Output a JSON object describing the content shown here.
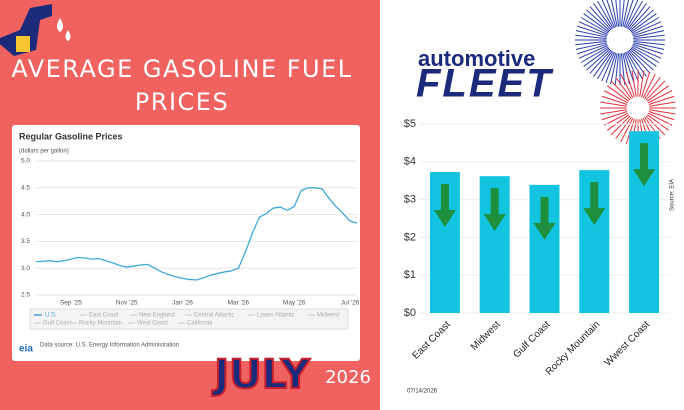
{
  "headline": {
    "line1": "AVERAGE GASOLINE FUEL",
    "line2": "PRICES"
  },
  "branding": {
    "small": "automotive",
    "big": "FLEET"
  },
  "decoration_text": {
    "month": "JULY",
    "year": "2026"
  },
  "date": "07/14/2026",
  "eia_logo": "eia",
  "chart_data": [
    {
      "type": "line",
      "title": "Regular Gasoline Prices",
      "subtitle": "(dollars per gallon)",
      "categories": [
        null,
        null,
        null,
        null,
        null,
        "Sep '25",
        null,
        null,
        null,
        null,
        null,
        null,
        null,
        "Nov '25",
        null,
        null,
        null,
        null,
        null,
        null,
        null,
        "Jan '26",
        null,
        null,
        null,
        null,
        null,
        null,
        null,
        "Mar '26",
        null,
        null,
        null,
        null,
        null,
        null,
        null,
        "May '26",
        null,
        null,
        null,
        null,
        null,
        null,
        null,
        "Jul '26",
        null
      ],
      "series": [
        {
          "name": "U.S.",
          "color": "#3fa9d8",
          "values": [
            3.12,
            3.13,
            3.14,
            3.12,
            3.14,
            3.17,
            3.2,
            3.19,
            3.17,
            3.18,
            3.14,
            3.1,
            3.05,
            3.02,
            3.04,
            3.06,
            3.07,
            3.0,
            2.93,
            2.88,
            2.84,
            2.81,
            2.79,
            2.78,
            2.82,
            2.87,
            2.9,
            2.93,
            2.95,
            3.0,
            3.3,
            3.65,
            3.95,
            4.02,
            4.12,
            4.14,
            4.08,
            4.15,
            4.45,
            4.5,
            4.5,
            4.48,
            4.3,
            4.15,
            4.02,
            3.88,
            3.84
          ]
        }
      ],
      "legend_other": [
        "East Coast",
        "New England",
        "Central Atlantic",
        "Lower Atlantic",
        "Midwest",
        "Gulf Coast",
        "Rocky Mountain",
        "West Coast",
        "California"
      ],
      "ylim": [
        2.5,
        5.0
      ],
      "yticks": [
        {
          "value": 2.5,
          "label": "2.5"
        },
        {
          "value": 3,
          "label": "3.0"
        },
        {
          "value": 3.5,
          "label": "3.5"
        },
        {
          "value": 4,
          "label": "4.0"
        },
        {
          "value": 4.5,
          "label": "4.5"
        },
        {
          "value": 5,
          "label": "5.0"
        }
      ],
      "grid": true,
      "source": "Data source: U.S. Energy Information Administration"
    },
    {
      "type": "bar",
      "categories": [
        "East Coast",
        "Midwest",
        "Gulf Coast",
        "Rocky Mountain",
        "Wwest Coast"
      ],
      "values": [
        3.73,
        3.62,
        3.39,
        3.78,
        4.81
      ],
      "color": "#13c4e1",
      "ylim": [
        0,
        5
      ],
      "yticks": [
        {
          "value": 0,
          "label": "$0"
        },
        {
          "value": 1,
          "label": "$1"
        },
        {
          "value": 2,
          "label": "$2"
        },
        {
          "value": 3,
          "label": "$3"
        },
        {
          "value": 4,
          "label": "$4"
        },
        {
          "value": 5,
          "label": "$5"
        }
      ],
      "grid": true,
      "source_note": "Source: EIA"
    }
  ]
}
